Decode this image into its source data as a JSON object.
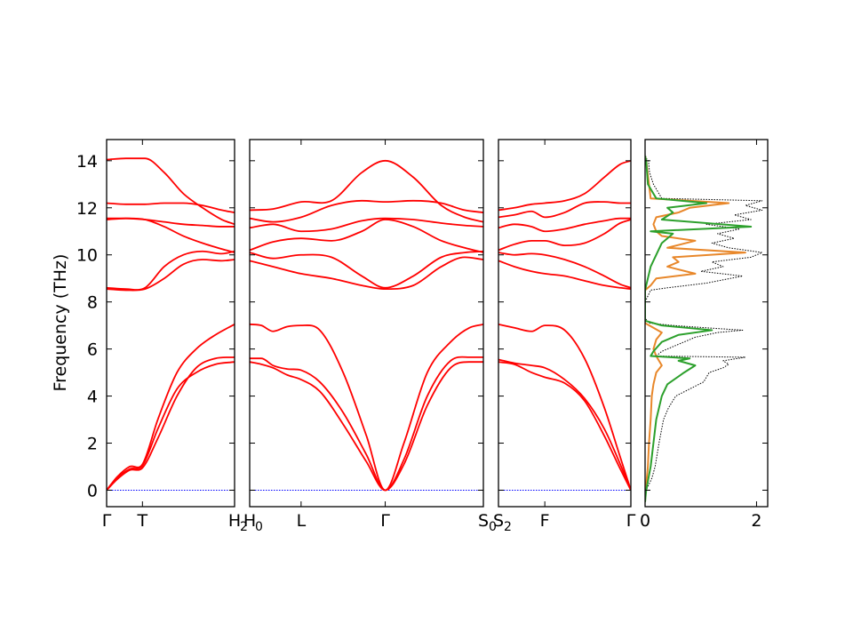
{
  "chart_data": {
    "type": "line",
    "ylabel": "Frequency (THz)",
    "ylim": [
      -0.7,
      14.9
    ],
    "yticks": [
      0,
      2,
      4,
      6,
      8,
      10,
      12,
      14
    ],
    "grid": false,
    "colors": {
      "bands": "#ff0000",
      "zero_line": "#0000ff",
      "dos_orange": "#e8872a",
      "dos_green": "#2ca02c",
      "dos_total": "#000000"
    },
    "panels": [
      {
        "kpoints": [
          {
            "label": "Γ",
            "sub": ""
          },
          {
            "label": "T",
            "sub": ""
          },
          {
            "label": "H",
            "sub": "2"
          }
        ],
        "kpos": [
          0,
          0.28,
          1
        ],
        "bands": [
          {
            "x": [
              0,
              0.08,
              0.18,
              0.28,
              0.4,
              0.55,
              0.7,
              0.85,
              1
            ],
            "y": [
              0,
              0.45,
              0.85,
              0.95,
              2.2,
              4.0,
              5.2,
              5.6,
              5.65
            ]
          },
          {
            "x": [
              0,
              0.08,
              0.18,
              0.28,
              0.4,
              0.55,
              0.7,
              0.85,
              1
            ],
            "y": [
              0,
              0.5,
              0.9,
              1.05,
              2.6,
              4.3,
              5.0,
              5.35,
              5.45
            ]
          },
          {
            "x": [
              0,
              0.08,
              0.18,
              0.28,
              0.4,
              0.55,
              0.7,
              0.85,
              1
            ],
            "y": [
              0,
              0.55,
              1.0,
              1.1,
              3.0,
              5.0,
              6.0,
              6.6,
              7.05
            ]
          },
          {
            "x": [
              0,
              0.15,
              0.3,
              0.45,
              0.6,
              0.75,
              0.9,
              1
            ],
            "y": [
              8.55,
              8.5,
              8.55,
              9.0,
              9.6,
              9.8,
              9.75,
              9.8
            ]
          },
          {
            "x": [
              0,
              0.15,
              0.3,
              0.45,
              0.6,
              0.75,
              0.9,
              1
            ],
            "y": [
              8.6,
              8.55,
              8.6,
              9.5,
              10.0,
              10.15,
              10.05,
              10.15
            ]
          },
          {
            "x": [
              0,
              0.15,
              0.3,
              0.45,
              0.6,
              0.75,
              0.9,
              1
            ],
            "y": [
              11.5,
              11.55,
              11.5,
              11.2,
              10.8,
              10.5,
              10.25,
              10.1
            ]
          },
          {
            "x": [
              0,
              0.15,
              0.3,
              0.45,
              0.6,
              0.75,
              0.9,
              1
            ],
            "y": [
              11.55,
              11.55,
              11.5,
              11.4,
              11.3,
              11.25,
              11.2,
              11.2
            ]
          },
          {
            "x": [
              0,
              0.15,
              0.3,
              0.45,
              0.6,
              0.75,
              0.9,
              1
            ],
            "y": [
              12.2,
              12.15,
              12.15,
              12.2,
              12.2,
              12.1,
              11.9,
              11.8
            ]
          },
          {
            "x": [
              0,
              0.15,
              0.3,
              0.45,
              0.6,
              0.75,
              0.9,
              1
            ],
            "y": [
              14.05,
              14.1,
              14.1,
              13.5,
              12.6,
              12.0,
              11.5,
              11.3
            ]
          }
        ]
      },
      {
        "kpoints": [
          {
            "label": "H",
            "sub": "0"
          },
          {
            "label": "L",
            "sub": ""
          },
          {
            "label": "Γ",
            "sub": ""
          },
          {
            "label": "S",
            "sub": "0"
          }
        ],
        "kpos": [
          0,
          0.22,
          0.58,
          1
        ],
        "bands": [
          {
            "x": [
              0,
              0.05,
              0.1,
              0.16,
              0.22,
              0.3,
              0.4,
              0.5,
              0.58,
              0.66,
              0.76,
              0.86,
              0.94,
              1
            ],
            "y": [
              5.45,
              5.35,
              5.2,
              4.9,
              4.7,
              4.2,
              2.8,
              1.2,
              0,
              1.1,
              3.6,
              5.2,
              5.45,
              5.45
            ]
          },
          {
            "x": [
              0,
              0.05,
              0.1,
              0.16,
              0.22,
              0.3,
              0.4,
              0.5,
              0.58,
              0.66,
              0.76,
              0.86,
              0.94,
              1
            ],
            "y": [
              5.6,
              5.6,
              5.3,
              5.15,
              5.1,
              4.6,
              3.3,
              1.5,
              0,
              1.3,
              4.0,
              5.5,
              5.65,
              5.65
            ]
          },
          {
            "x": [
              0,
              0.05,
              0.1,
              0.16,
              0.22,
              0.3,
              0.4,
              0.5,
              0.58,
              0.66,
              0.76,
              0.86,
              0.94,
              1
            ],
            "y": [
              7.05,
              7.0,
              6.75,
              6.95,
              7.0,
              6.8,
              5.0,
              2.3,
              0,
              2.0,
              5.0,
              6.3,
              6.9,
              7.05
            ]
          },
          {
            "x": [
              0,
              0.1,
              0.22,
              0.35,
              0.48,
              0.58,
              0.7,
              0.82,
              0.92,
              1
            ],
            "y": [
              9.75,
              9.5,
              9.2,
              9.0,
              8.7,
              8.55,
              8.7,
              9.5,
              9.9,
              9.8
            ]
          },
          {
            "x": [
              0,
              0.1,
              0.22,
              0.35,
              0.48,
              0.58,
              0.7,
              0.82,
              0.92,
              1
            ],
            "y": [
              10.1,
              9.85,
              10.0,
              9.9,
              9.1,
              8.6,
              9.1,
              9.9,
              10.1,
              10.15
            ]
          },
          {
            "x": [
              0,
              0.1,
              0.22,
              0.35,
              0.48,
              0.58,
              0.7,
              0.82,
              0.92,
              1
            ],
            "y": [
              10.2,
              10.55,
              10.7,
              10.6,
              11.0,
              11.5,
              11.2,
              10.6,
              10.3,
              10.1
            ]
          },
          {
            "x": [
              0,
              0.1,
              0.22,
              0.35,
              0.48,
              0.58,
              0.7,
              0.82,
              0.92,
              1
            ],
            "y": [
              11.15,
              11.3,
              11.0,
              11.1,
              11.45,
              11.55,
              11.5,
              11.35,
              11.25,
              11.2
            ]
          },
          {
            "x": [
              0,
              0.1,
              0.22,
              0.35,
              0.48,
              0.58,
              0.7,
              0.82,
              0.92,
              1
            ],
            "y": [
              11.55,
              11.4,
              11.6,
              12.1,
              12.3,
              12.25,
              12.3,
              12.2,
              11.9,
              11.8
            ]
          },
          {
            "x": [
              0,
              0.1,
              0.22,
              0.35,
              0.48,
              0.58,
              0.7,
              0.82,
              0.92,
              1
            ],
            "y": [
              11.9,
              11.95,
              12.25,
              12.3,
              13.5,
              14.0,
              13.3,
              12.1,
              11.6,
              11.4
            ]
          }
        ]
      },
      {
        "kpoints": [
          {
            "label": "S",
            "sub": "2"
          },
          {
            "label": "F",
            "sub": ""
          },
          {
            "label": "Γ",
            "sub": ""
          }
        ],
        "kpos": [
          0,
          0.35,
          1
        ],
        "bands": [
          {
            "x": [
              0,
              0.12,
              0.25,
              0.35,
              0.5,
              0.65,
              0.8,
              0.92,
              1
            ],
            "y": [
              5.45,
              5.35,
              5.0,
              4.8,
              4.55,
              3.8,
              2.3,
              0.9,
              0
            ]
          },
          {
            "x": [
              0,
              0.12,
              0.25,
              0.35,
              0.5,
              0.65,
              0.8,
              0.92,
              1
            ],
            "y": [
              5.55,
              5.4,
              5.3,
              5.2,
              4.7,
              3.9,
              2.6,
              1.1,
              0
            ]
          },
          {
            "x": [
              0,
              0.12,
              0.25,
              0.35,
              0.5,
              0.65,
              0.8,
              0.92,
              1
            ],
            "y": [
              7.05,
              6.9,
              6.75,
              7.0,
              6.8,
              5.6,
              3.5,
              1.4,
              0
            ]
          },
          {
            "x": [
              0,
              0.12,
              0.25,
              0.35,
              0.5,
              0.65,
              0.8,
              0.92,
              1
            ],
            "y": [
              9.75,
              9.5,
              9.3,
              9.2,
              9.1,
              8.9,
              8.7,
              8.6,
              8.55
            ]
          },
          {
            "x": [
              0,
              0.12,
              0.25,
              0.35,
              0.5,
              0.65,
              0.8,
              0.92,
              1
            ],
            "y": [
              10.1,
              10.0,
              10.05,
              10.0,
              9.8,
              9.5,
              9.1,
              8.75,
              8.6
            ]
          },
          {
            "x": [
              0,
              0.12,
              0.25,
              0.35,
              0.5,
              0.65,
              0.8,
              0.92,
              1
            ],
            "y": [
              10.2,
              10.45,
              10.6,
              10.6,
              10.4,
              10.5,
              10.9,
              11.35,
              11.5
            ]
          },
          {
            "x": [
              0,
              0.12,
              0.25,
              0.35,
              0.5,
              0.65,
              0.8,
              0.92,
              1
            ],
            "y": [
              11.15,
              11.3,
              11.2,
              11.0,
              11.1,
              11.3,
              11.45,
              11.55,
              11.55
            ]
          },
          {
            "x": [
              0,
              0.12,
              0.25,
              0.35,
              0.5,
              0.65,
              0.8,
              0.92,
              1
            ],
            "y": [
              11.6,
              11.7,
              11.85,
              11.6,
              11.8,
              12.2,
              12.25,
              12.2,
              12.2
            ]
          },
          {
            "x": [
              0,
              0.12,
              0.25,
              0.35,
              0.5,
              0.65,
              0.8,
              0.92,
              1
            ],
            "y": [
              11.9,
              12.0,
              12.15,
              12.2,
              12.3,
              12.6,
              13.3,
              13.85,
              14.0
            ]
          }
        ]
      }
    ],
    "dos": {
      "xlim": [
        0,
        2.2
      ],
      "xticks": [
        0,
        2
      ],
      "total": {
        "freq": [
          -0.5,
          0,
          0.5,
          1.0,
          2.0,
          3.0,
          3.5,
          4.0,
          4.3,
          4.6,
          4.8,
          5.0,
          5.2,
          5.35,
          5.5,
          5.65,
          5.7,
          5.9,
          6.2,
          6.5,
          6.7,
          6.8,
          6.9,
          7.0,
          7.1,
          7.3,
          8.0,
          8.5,
          8.6,
          8.8,
          9.1,
          9.3,
          9.5,
          9.7,
          9.9,
          10.1,
          10.3,
          10.5,
          10.7,
          10.9,
          11.1,
          11.3,
          11.5,
          11.7,
          11.9,
          12.1,
          12.3,
          12.4,
          13.0,
          13.5,
          14.0,
          14.1,
          14.3
        ],
        "dos": [
          0,
          0.02,
          0.12,
          0.18,
          0.25,
          0.33,
          0.42,
          0.55,
          0.8,
          1.05,
          1.1,
          1.15,
          1.4,
          1.5,
          1.4,
          1.8,
          0.2,
          0.3,
          0.6,
          0.9,
          1.3,
          1.75,
          1.1,
          0.5,
          0.08,
          0,
          0,
          0.1,
          0.4,
          1.1,
          1.75,
          1.0,
          1.4,
          1.2,
          1.9,
          2.1,
          1.5,
          1.2,
          1.6,
          1.3,
          1.7,
          1.1,
          1.9,
          1.6,
          2.1,
          1.8,
          2.1,
          0.3,
          0.15,
          0.08,
          0.06,
          0.02,
          0
        ]
      },
      "green": {
        "freq": [
          -0.5,
          0,
          0.5,
          1.0,
          2.0,
          3.0,
          4.0,
          4.5,
          5.0,
          5.3,
          5.5,
          5.6,
          5.7,
          5.9,
          6.3,
          6.6,
          6.8,
          7.0,
          7.2,
          8.5,
          9.0,
          9.5,
          10.0,
          10.5,
          10.9,
          11.0,
          11.2,
          11.5,
          11.8,
          12.0,
          12.2,
          12.4,
          13.0,
          14.0,
          14.2
        ],
        "dos": [
          0,
          0.02,
          0.06,
          0.1,
          0.15,
          0.2,
          0.3,
          0.4,
          0.7,
          0.9,
          0.6,
          0.8,
          0.1,
          0.15,
          0.3,
          0.6,
          1.2,
          0.3,
          0,
          0,
          0.05,
          0.1,
          0.2,
          0.3,
          0.5,
          0.1,
          1.9,
          0.3,
          0.5,
          0.4,
          1.1,
          0.2,
          0.05,
          0.02,
          0
        ]
      },
      "orange": {
        "freq": [
          -0.5,
          0,
          1.0,
          2.0,
          3.0,
          4.0,
          4.5,
          5.0,
          5.3,
          5.5,
          5.7,
          6.0,
          6.4,
          6.7,
          6.9,
          7.1,
          8.5,
          8.7,
          9.0,
          9.2,
          9.5,
          9.7,
          9.9,
          10.1,
          10.3,
          10.6,
          10.8,
          11.0,
          11.3,
          11.6,
          11.8,
          12.0,
          12.2,
          12.4,
          14.0,
          14.2
        ],
        "dos": [
          0,
          0.01,
          0.05,
          0.07,
          0.1,
          0.12,
          0.15,
          0.2,
          0.3,
          0.25,
          0.2,
          0.15,
          0.2,
          0.3,
          0.15,
          0,
          0,
          0.1,
          0.2,
          0.9,
          0.4,
          0.6,
          0.5,
          1.8,
          0.4,
          0.9,
          0.3,
          0.2,
          0.15,
          0.2,
          0.6,
          0.8,
          1.5,
          0.1,
          0.02,
          0
        ]
      }
    }
  }
}
